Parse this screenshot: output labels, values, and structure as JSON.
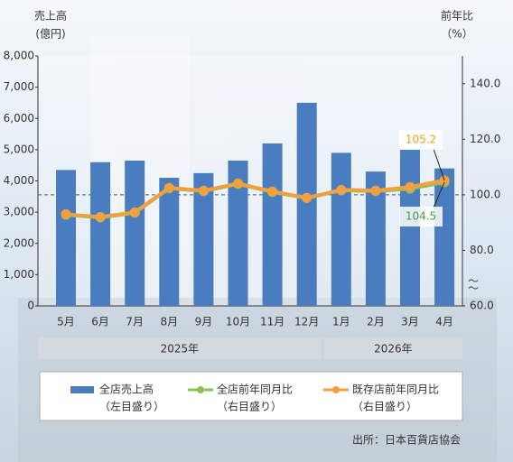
{
  "chart_data": {
    "type": "bar_line",
    "y_axis_title": [
      "売上高",
      "(億円)"
    ],
    "y2_axis_title": [
      "前年比",
      "（%）"
    ],
    "categories": [
      "5月",
      "6月",
      "7月",
      "8月",
      "9月",
      "10月",
      "11月",
      "12月",
      "1月",
      "2月",
      "3月",
      "4月"
    ],
    "groups": [
      {
        "label": "2025年",
        "start": 0,
        "end": 7
      },
      {
        "label": "2026年",
        "start": 8,
        "end": 11
      }
    ],
    "series": [
      {
        "name": "全店売上高",
        "note": "（左目盛り）",
        "type": "bar",
        "axis": "y",
        "color": "#4a7cc0",
        "values": [
          4350,
          4600,
          4650,
          4100,
          4250,
          4650,
          5200,
          6500,
          4900,
          4300,
          5000,
          4400
        ]
      },
      {
        "name": "全店前年同月比",
        "note": "（右目盛り）",
        "type": "line",
        "axis": "y2",
        "color": "#8cc152",
        "label_last": true,
        "values": [
          92.8,
          91.8,
          93.5,
          102.3,
          101.3,
          103.9,
          101.0,
          98.8,
          101.6,
          101.3,
          102.2,
          104.5
        ]
      },
      {
        "name": "既存店前年同月比",
        "note": "（右目盛り）",
        "type": "line",
        "axis": "y2",
        "color": "#f0a040",
        "label_last": true,
        "values": [
          93.0,
          92.0,
          93.7,
          102.5,
          101.5,
          104.1,
          101.2,
          98.9,
          101.8,
          101.5,
          102.8,
          105.2
        ]
      }
    ],
    "ylim": [
      0,
      8000
    ],
    "yticks": [
      0,
      {
        "value": 1000,
        "label": "1,000"
      },
      {
        "value": 2000,
        "label": "2,000"
      },
      {
        "value": 3000,
        "label": "3,000"
      },
      {
        "value": 4000,
        "label": "4,000"
      },
      {
        "value": 5000,
        "label": "5,000"
      },
      {
        "value": 6000,
        "label": "6,000"
      },
      {
        "value": 7000,
        "label": "7,000"
      },
      {
        "value": 8000,
        "label": "8,000"
      }
    ],
    "y2lim": [
      60,
      150
    ],
    "y2ticks": [
      {
        "value": 60,
        "label": "60.0"
      },
      {
        "value": 80,
        "label": "80.0"
      },
      {
        "value": 100,
        "label": "100.0"
      },
      {
        "value": 120,
        "label": "120.0"
      },
      {
        "value": 140,
        "label": "140.0"
      }
    ],
    "reference_line": 100,
    "source": "出所：日本百貨店協会"
  }
}
